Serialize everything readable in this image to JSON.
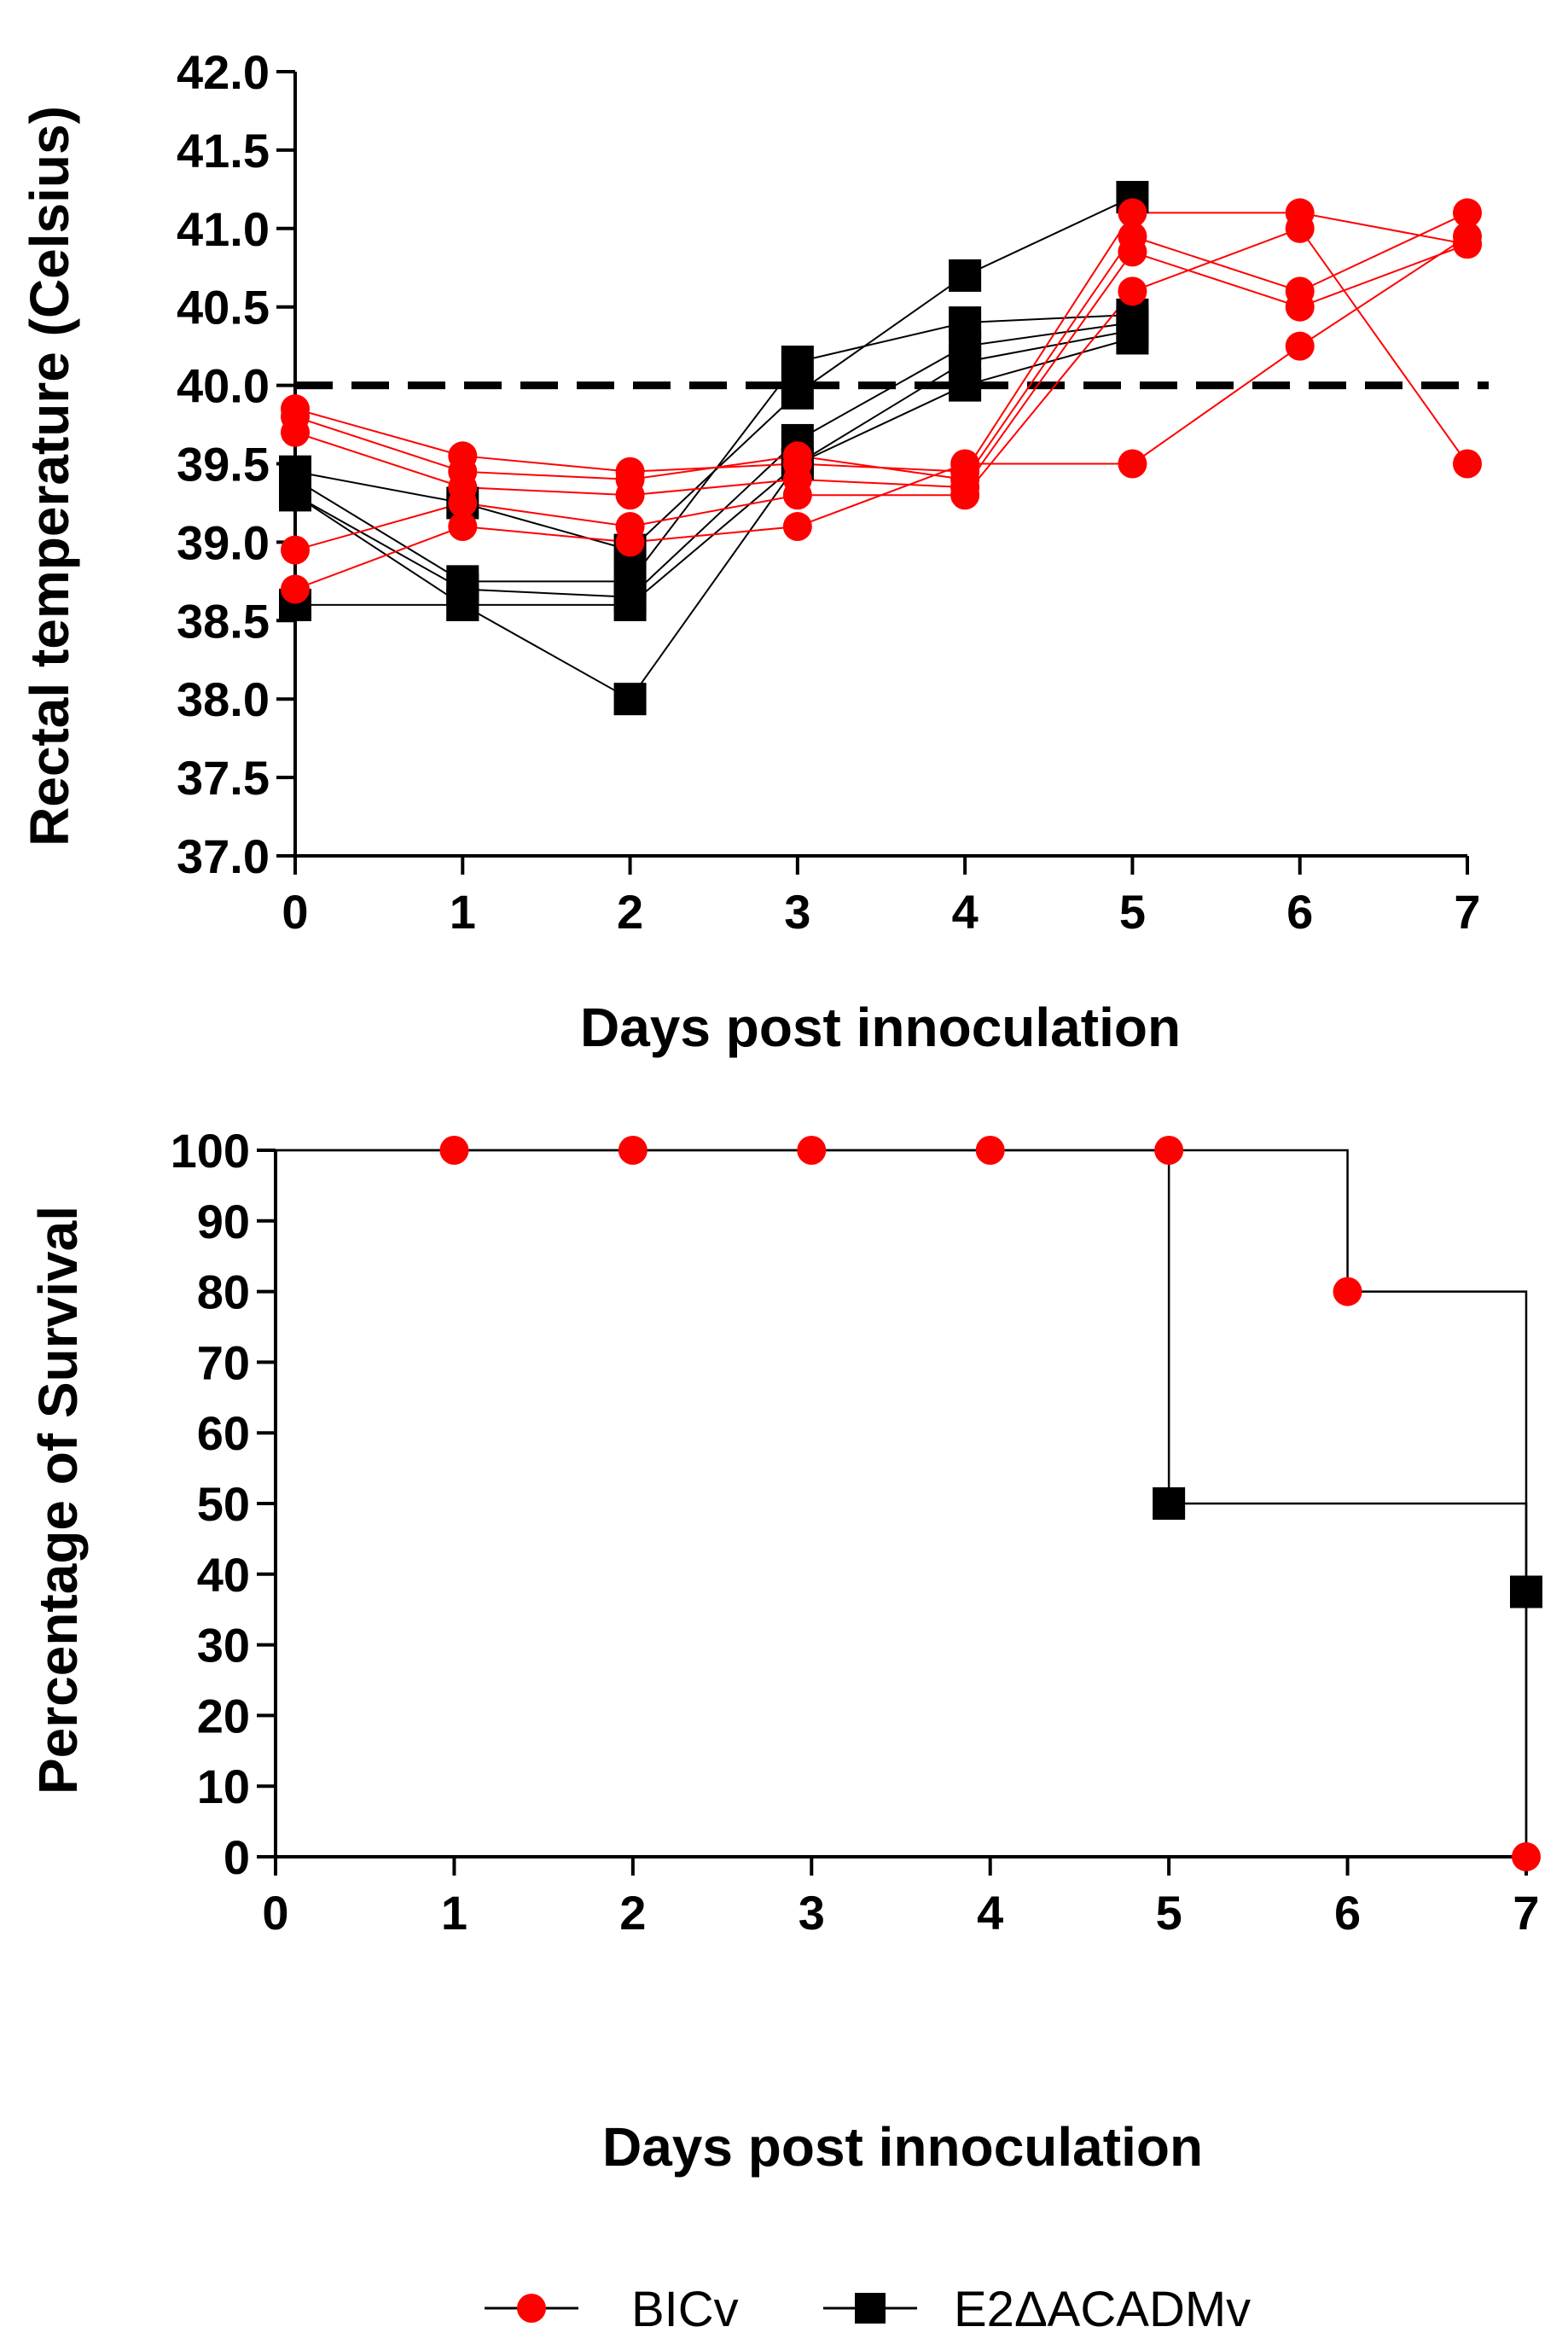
{
  "chart_data": [
    {
      "type": "line",
      "title": "",
      "xlabel": "Days post innoculation",
      "ylabel": "Rectal temperature (Celsius)",
      "xlim": [
        0,
        7
      ],
      "ylim": [
        37.0,
        42.0
      ],
      "x_ticks": [
        "0",
        "1",
        "2",
        "3",
        "4",
        "5",
        "6",
        "7"
      ],
      "y_ticks": [
        "37.0",
        "37.5",
        "38.0",
        "38.5",
        "39.0",
        "39.5",
        "40.0",
        "40.5",
        "41.0",
        "41.5",
        "42.0"
      ],
      "threshold": {
        "y": 40.0,
        "style": "dashed"
      },
      "series": [
        {
          "name": "BICv",
          "color": "#ff0000",
          "marker": "circle",
          "x": [
            0,
            1,
            2,
            3,
            4,
            5,
            6,
            7
          ],
          "values": [
            39.85,
            39.55,
            39.45,
            39.5,
            39.45,
            41.1,
            41.1,
            40.9
          ]
        },
        {
          "name": "BICv",
          "color": "#ff0000",
          "marker": "circle",
          "x": [
            0,
            1,
            2,
            3,
            4,
            5,
            6,
            7
          ],
          "values": [
            39.8,
            39.45,
            39.4,
            39.55,
            39.4,
            40.95,
            40.6,
            41.1
          ]
        },
        {
          "name": "BICv",
          "color": "#ff0000",
          "marker": "circle",
          "x": [
            0,
            1,
            2,
            3,
            4,
            5,
            6,
            7
          ],
          "values": [
            39.7,
            39.35,
            39.3,
            39.4,
            39.35,
            40.85,
            40.5,
            40.9
          ]
        },
        {
          "name": "BICv",
          "color": "#ff0000",
          "marker": "circle",
          "x": [
            0,
            1,
            2,
            3,
            4,
            5,
            6,
            7
          ],
          "values": [
            38.95,
            39.25,
            39.1,
            39.3,
            39.3,
            40.6,
            41.0,
            39.5
          ]
        },
        {
          "name": "BICv",
          "color": "#ff0000",
          "marker": "circle",
          "x": [
            0,
            1,
            2,
            3,
            4,
            5,
            6,
            7
          ],
          "values": [
            38.7,
            39.1,
            39.0,
            39.1,
            39.5,
            39.5,
            40.25,
            40.95
          ]
        },
        {
          "name": "E2ΔACADMv",
          "color": "#000000",
          "marker": "square",
          "x": [
            0,
            1,
            2,
            3,
            4,
            5
          ],
          "values": [
            39.45,
            39.25,
            38.95,
            39.95,
            40.7,
            41.2
          ]
        },
        {
          "name": "E2ΔACADMv",
          "color": "#000000",
          "marker": "square",
          "x": [
            0,
            1,
            2,
            3,
            4,
            5
          ],
          "values": [
            39.4,
            38.75,
            38.75,
            40.15,
            40.4,
            40.45
          ]
        },
        {
          "name": "E2ΔACADMv",
          "color": "#000000",
          "marker": "square",
          "x": [
            0,
            1,
            2,
            3,
            4,
            5
          ],
          "values": [
            39.3,
            38.7,
            38.65,
            39.65,
            40.25,
            40.4
          ]
        },
        {
          "name": "E2ΔACADMv",
          "color": "#000000",
          "marker": "square",
          "x": [
            0,
            1,
            2,
            3,
            4,
            5
          ],
          "values": [
            39.3,
            38.6,
            38.0,
            39.5,
            40.15,
            40.35
          ]
        },
        {
          "name": "E2ΔACADMv",
          "color": "#000000",
          "marker": "square",
          "x": [
            0,
            1,
            2,
            3,
            4,
            5
          ],
          "values": [
            38.6,
            38.6,
            38.6,
            39.5,
            40.0,
            40.3
          ]
        }
      ]
    },
    {
      "type": "line",
      "subtype": "survival-step",
      "title": "",
      "xlabel": "Days post innoculation",
      "ylabel": "Percentage of Survival",
      "xlim": [
        0,
        7
      ],
      "ylim": [
        0,
        100
      ],
      "x_ticks": [
        "0",
        "1",
        "2",
        "3",
        "4",
        "5",
        "6",
        "7"
      ],
      "y_ticks": [
        "0",
        "10",
        "20",
        "30",
        "40",
        "50",
        "60",
        "70",
        "80",
        "90",
        "100"
      ],
      "series": [
        {
          "name": "BICv",
          "color": "#ff0000",
          "marker": "circle",
          "steps": [
            [
              0,
              100
            ],
            [
              6,
              100
            ],
            [
              6,
              80
            ],
            [
              7,
              80
            ],
            [
              7,
              0
            ]
          ],
          "points": [
            [
              1,
              100
            ],
            [
              2,
              100
            ],
            [
              3,
              100
            ],
            [
              4,
              100
            ],
            [
              5,
              100
            ],
            [
              6,
              80
            ],
            [
              7,
              0
            ]
          ]
        },
        {
          "name": "E2ΔACADMv",
          "color": "#000000",
          "marker": "square",
          "steps": [
            [
              0,
              100
            ],
            [
              5,
              100
            ],
            [
              5,
              50
            ],
            [
              7,
              50
            ],
            [
              7,
              0
            ]
          ],
          "points": [
            [
              5,
              50
            ],
            [
              7,
              37.5
            ]
          ]
        }
      ]
    }
  ],
  "legend": {
    "position": "bottom-center",
    "entries": [
      {
        "label": "BICv",
        "color": "#ff0000",
        "marker": "circle"
      },
      {
        "label": "E2ΔACADMv",
        "color": "#000000",
        "marker": "square"
      }
    ]
  }
}
